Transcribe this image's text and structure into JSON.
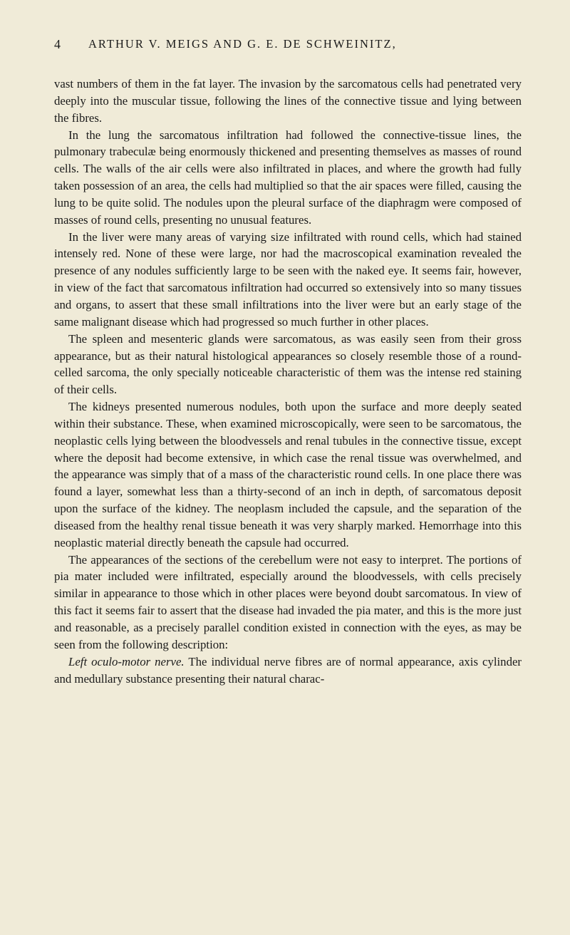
{
  "page": {
    "number": "4",
    "header": "ARTHUR V. MEIGS AND G. E. DE SCHWEINITZ,",
    "paragraphs": [
      "vast numbers of them in the fat layer. The invasion by the sarcomatous cells had penetrated very deeply into the muscular tissue, following the lines of the connective tissue and lying between the fibres.",
      "In the lung the sarcomatous infiltration had followed the connective-tissue lines, the pulmonary trabeculæ being enormously thickened and presenting themselves as masses of round cells. The walls of the air cells were also infiltrated in places, and where the growth had fully taken possession of an area, the cells had multiplied so that the air spaces were filled, causing the lung to be quite solid. The nodules upon the pleural surface of the diaphragm were composed of masses of round cells, presenting no unusual features.",
      "In the liver were many areas of varying size infiltrated with round cells, which had stained intensely red. None of these were large, nor had the macroscopical examination revealed the presence of any nodules sufficiently large to be seen with the naked eye. It seems fair, however, in view of the fact that sarcomatous infiltration had occurred so extensively into so many tissues and organs, to assert that these small infiltrations into the liver were but an early stage of the same malignant disease which had progressed so much further in other places.",
      "The spleen and mesenteric glands were sarcomatous, as was easily seen from their gross appearance, but as their natural histological appearances so closely resemble those of a round-celled sarcoma, the only specially noticeable characteristic of them was the intense red staining of their cells.",
      "The kidneys presented numerous nodules, both upon the surface and more deeply seated within their substance. These, when examined microscopically, were seen to be sarcomatous, the neoplastic cells lying between the bloodvessels and renal tubules in the connective tissue, except where the deposit had become extensive, in which case the renal tissue was overwhelmed, and the appearance was simply that of a mass of the characteristic round cells. In one place there was found a layer, somewhat less than a thirty-second of an inch in depth, of sarcomatous deposit upon the surface of the kidney. The neoplasm included the capsule, and the separation of the diseased from the healthy renal tissue beneath it was very sharply marked. Hemorrhage into this neoplastic material directly beneath the capsule had occurred.",
      "The appearances of the sections of the cerebellum were not easy to interpret. The portions of pia mater included were infiltrated, especially around the bloodvessels, with cells precisely similar in appearance to those which in other places were beyond doubt sarcomatous. In view of this fact it seems fair to assert that the disease had invaded the pia mater, and this is the more just and reasonable, as a precisely parallel condition existed in connection with the eyes, as may be seen from the following description:"
    ],
    "lastParagraph": {
      "italicPrefix": "Left oculo-motor nerve.",
      "text": " The individual nerve fibres are of normal appearance, axis cylinder and medullary substance presenting their natural charac-"
    }
  }
}
